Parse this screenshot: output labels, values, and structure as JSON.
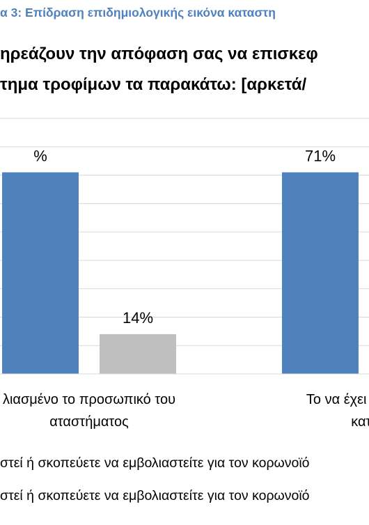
{
  "caption": "α 3: Επίδραση επιδημιολογικής εικόνα καταστη",
  "chart_data": {
    "type": "bar",
    "title_lines": [
      "ηρεάζουν την απόφαση σας να επισκεφ",
      "τημα τροφίμων τα παρακάτω: [αρκετά/"
    ],
    "categories": [
      {
        "label_lines": [
          "λιασμένο το προσωπικό του",
          "αταστήματος"
        ]
      },
      {
        "label_lines": [
          "Το να έχει κάνει self-",
          "καταο"
        ]
      }
    ],
    "series": [
      {
        "name": "στεί ή σκοπεύετε να εμβολιαστείτε για τον κορωνοϊό",
        "color": "#4f81bd",
        "values": [
          71,
          71
        ],
        "labels": [
          "%",
          "71%"
        ]
      },
      {
        "name": "στεί ή σκοπεύετε να εμβολιαστείτε για τον κορωνοϊό",
        "color": "#bfbfbf",
        "values": [
          14,
          null
        ],
        "labels": [
          "14%",
          ""
        ]
      }
    ],
    "ylim": [
      0,
      90
    ],
    "grid": true
  }
}
